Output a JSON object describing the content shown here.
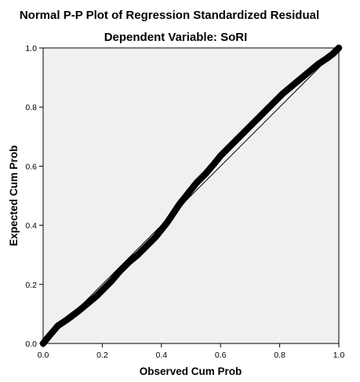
{
  "chart_data": {
    "type": "scatter",
    "title": "Normal P-P Plot of Regression Standardized Residual",
    "subtitle": "Dependent Variable: SoRI",
    "xlabel": "Observed Cum Prob",
    "ylabel": "Expected Cum Prob",
    "xlim": [
      0,
      1
    ],
    "ylim": [
      0,
      1
    ],
    "xticks": [
      "0.0",
      "0.2",
      "0.4",
      "0.6",
      "0.8",
      "1.0"
    ],
    "yticks": [
      "0.0",
      "0.2",
      "0.4",
      "0.6",
      "0.8",
      "1.0"
    ],
    "grid": false,
    "reference_line": {
      "x": [
        0,
        1
      ],
      "y": [
        0,
        1
      ]
    },
    "series": [
      {
        "x": [
          0.0,
          0.02,
          0.05,
          0.08,
          0.1,
          0.12,
          0.15,
          0.18,
          0.2,
          0.23,
          0.26,
          0.29,
          0.32,
          0.35,
          0.38,
          0.4,
          0.42,
          0.44,
          0.46,
          0.48,
          0.5,
          0.52,
          0.55,
          0.58,
          0.6,
          0.63,
          0.66,
          0.69,
          0.72,
          0.75,
          0.78,
          0.81,
          0.84,
          0.87,
          0.9,
          0.93,
          0.96,
          0.98,
          1.0
        ],
        "y": [
          0.0,
          0.025,
          0.06,
          0.08,
          0.095,
          0.11,
          0.135,
          0.16,
          0.18,
          0.21,
          0.245,
          0.275,
          0.3,
          0.33,
          0.36,
          0.385,
          0.41,
          0.44,
          0.47,
          0.495,
          0.52,
          0.545,
          0.575,
          0.61,
          0.635,
          0.665,
          0.695,
          0.725,
          0.755,
          0.785,
          0.815,
          0.845,
          0.87,
          0.895,
          0.92,
          0.945,
          0.965,
          0.98,
          1.0
        ]
      }
    ],
    "colors": {
      "plot_background": "#f0f0f0",
      "points": "#000000",
      "reference_line": "#000000"
    }
  }
}
